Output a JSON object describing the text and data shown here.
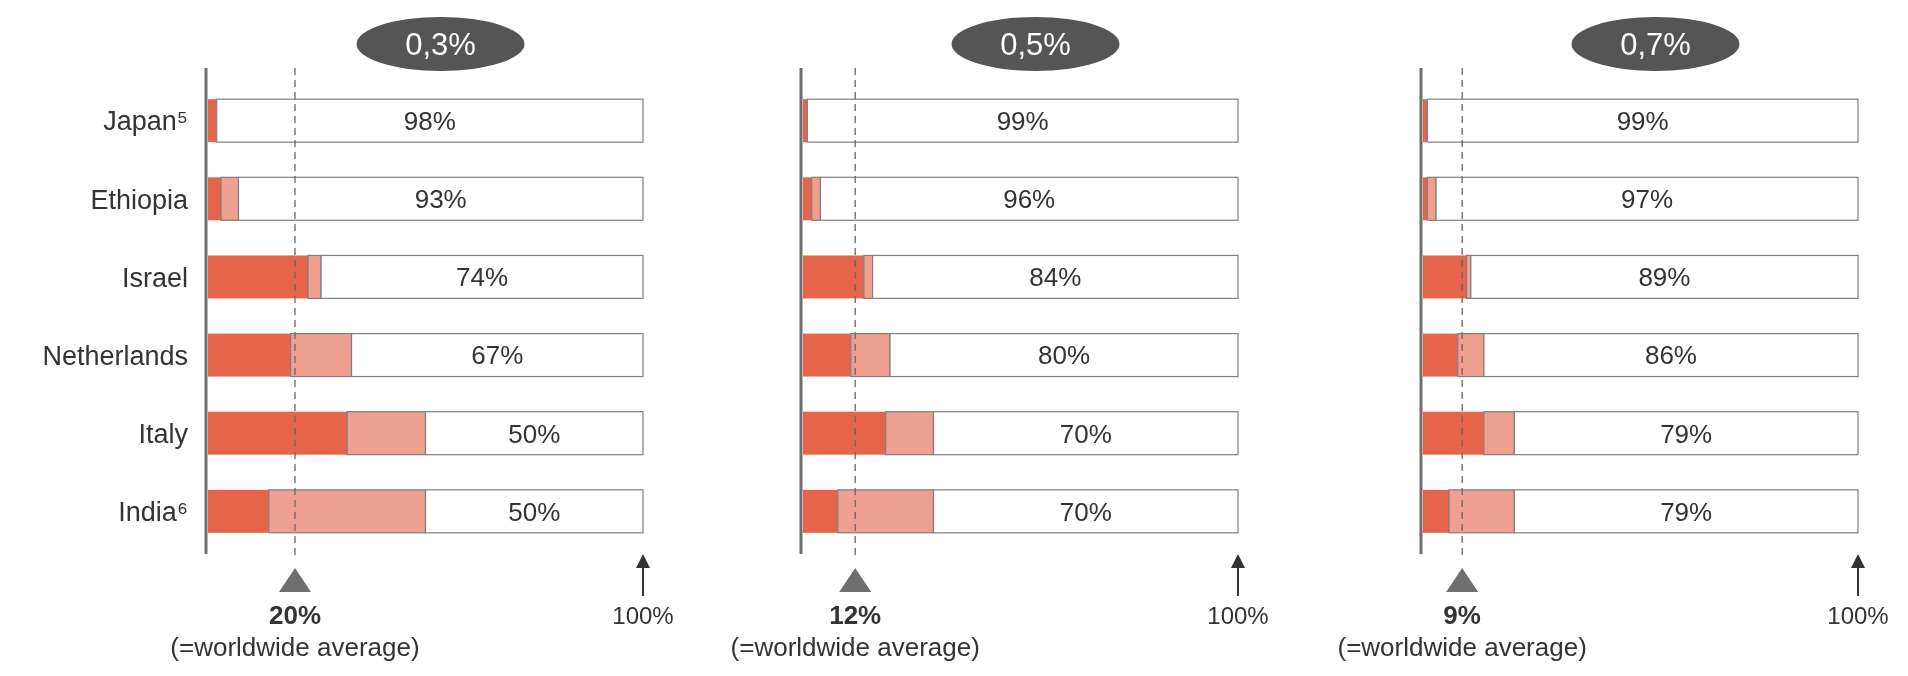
{
  "chart_data": [
    {
      "type": "bar",
      "title": "0,3%",
      "orientation": "horizontal",
      "stacked": true,
      "grid": false,
      "categories": [
        "Japan⁵",
        "Ethiopia",
        "Israel",
        "Netherlands",
        "Italy",
        "India⁶"
      ],
      "series": [
        {
          "color": "#e5654b",
          "values": [
            2,
            3,
            23,
            19,
            32,
            14
          ]
        },
        {
          "color": "#f0a090",
          "values": [
            0,
            4,
            3,
            14,
            18,
            36
          ]
        },
        {
          "color": "#ffffff",
          "values": [
            98,
            93,
            74,
            67,
            50,
            50
          ],
          "value_labels": [
            "98%",
            "93%",
            "74%",
            "67%",
            "50%",
            "50%"
          ]
        }
      ],
      "xlim": [
        0,
        100
      ],
      "ref_lines": [
        {
          "axis": "x",
          "value": 20,
          "label": "20%",
          "line_style": "dashed"
        }
      ],
      "annotations": [
        "(=worldwide average)",
        "100%"
      ]
    },
    {
      "type": "bar",
      "title": "0,5%",
      "orientation": "horizontal",
      "stacked": true,
      "grid": false,
      "categories": [
        null,
        null,
        null,
        null,
        null,
        null
      ],
      "series": [
        {
          "color": "#e5654b",
          "values": [
            1,
            2,
            14,
            11,
            19,
            8
          ]
        },
        {
          "color": "#f0a090",
          "values": [
            0,
            2,
            2,
            9,
            11,
            22
          ]
        },
        {
          "color": "#ffffff",
          "values": [
            99,
            96,
            84,
            80,
            70,
            70
          ],
          "value_labels": [
            "99%",
            "96%",
            "84%",
            "80%",
            "70%",
            "70%"
          ]
        }
      ],
      "xlim": [
        0,
        100
      ],
      "ref_lines": [
        {
          "axis": "x",
          "value": 12,
          "label": "12%",
          "line_style": "dashed"
        }
      ],
      "annotations": [
        "(=worldwide average)",
        "100%"
      ]
    },
    {
      "type": "bar",
      "title": "0,7%",
      "orientation": "horizontal",
      "stacked": true,
      "grid": false,
      "categories": [
        null,
        null,
        null,
        null,
        null,
        null
      ],
      "series": [
        {
          "color": "#e5654b",
          "values": [
            1,
            1,
            10,
            8,
            14,
            6
          ]
        },
        {
          "color": "#f0a090",
          "values": [
            0,
            2,
            1,
            6,
            7,
            15
          ]
        },
        {
          "color": "#ffffff",
          "values": [
            99,
            97,
            89,
            86,
            79,
            79
          ],
          "value_labels": [
            "99%",
            "97%",
            "89%",
            "86%",
            "79%",
            "79%"
          ]
        }
      ],
      "xlim": [
        0,
        100
      ],
      "ref_lines": [
        {
          "axis": "x",
          "value": 9,
          "label": "9%",
          "line_style": "dashed"
        }
      ],
      "annotations": [
        "(=worldwide average)",
        "100%"
      ]
    }
  ]
}
